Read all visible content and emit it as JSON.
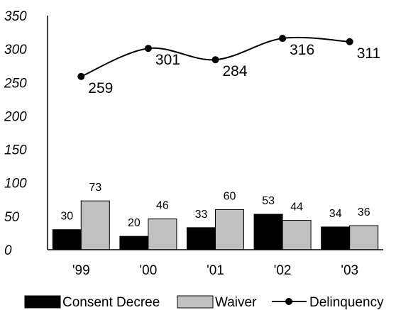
{
  "chart_data": {
    "type": "bar",
    "categories": [
      "'99",
      "'00",
      "'01",
      "'02",
      "'03"
    ],
    "series": [
      {
        "name": "Consent Decree",
        "kind": "bar",
        "values": [
          30,
          20,
          33,
          53,
          34
        ],
        "color": "#000000"
      },
      {
        "name": "Waiver",
        "kind": "bar",
        "values": [
          73,
          46,
          60,
          44,
          36
        ],
        "color": "#c0c0c0"
      },
      {
        "name": "Delinquency",
        "kind": "line",
        "values": [
          259,
          301,
          284,
          316,
          311
        ],
        "color": "#000000"
      }
    ],
    "ylim": [
      0,
      350
    ],
    "yticks": [
      "0",
      "50",
      "100",
      "150",
      "200",
      "250",
      "300",
      "350"
    ],
    "ytick_values": [
      0,
      50,
      100,
      150,
      200,
      250,
      300,
      350
    ],
    "grid": false,
    "legend_position": "bottom",
    "legend": [
      "Consent Decree",
      "Waiver",
      "Delinquency"
    ]
  }
}
